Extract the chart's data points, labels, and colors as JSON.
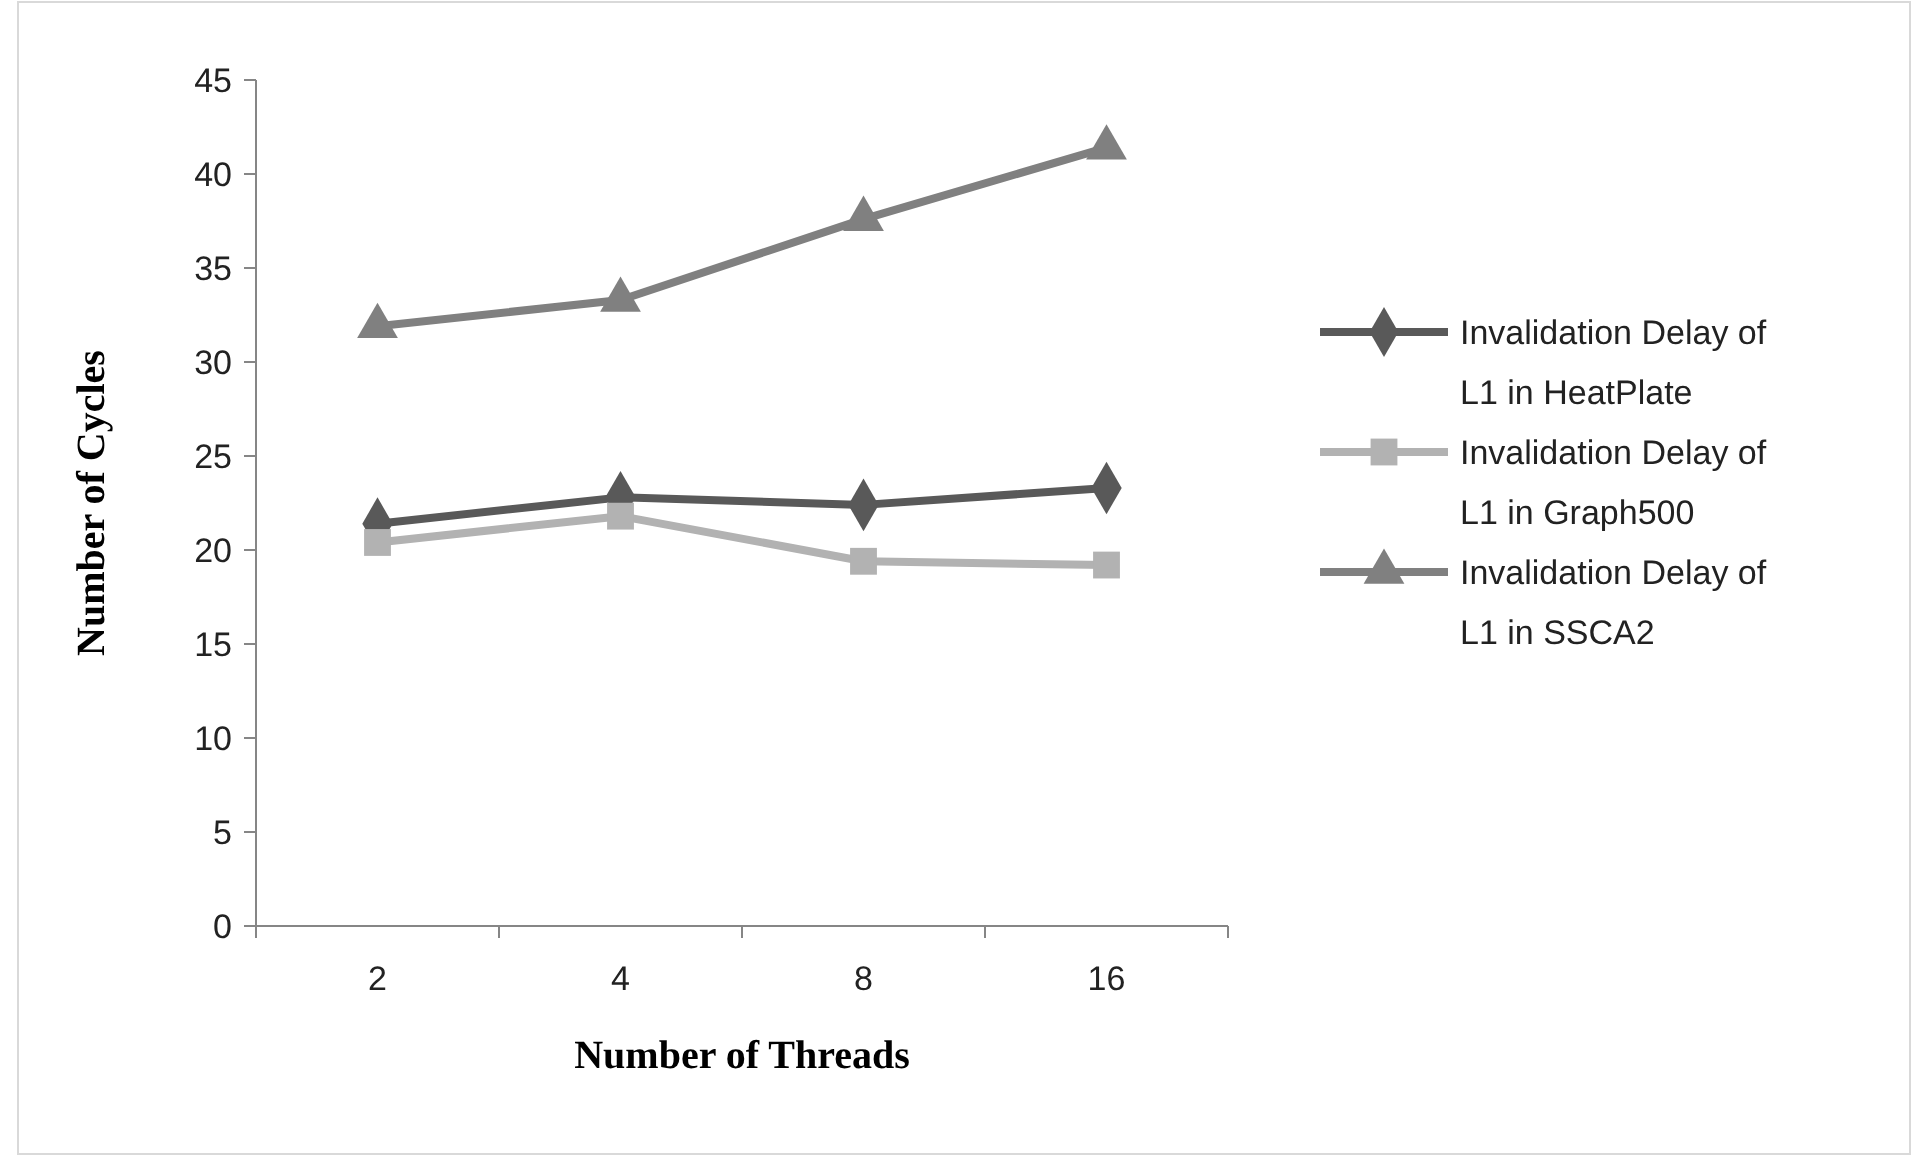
{
  "chart_data": {
    "type": "line",
    "xlabel": "Number of Threads",
    "ylabel": "Number of Cycles",
    "categories": [
      "2",
      "4",
      "8",
      "16"
    ],
    "ylim": [
      0,
      45
    ],
    "yticks": [
      0,
      5,
      10,
      15,
      20,
      25,
      30,
      35,
      40,
      45
    ],
    "grid": false,
    "legend": "right",
    "series": [
      {
        "name": "Invalidation Delay of L1 in HeatPlate",
        "color": "#595959",
        "marker": "diamond",
        "values": [
          21.4,
          22.8,
          22.4,
          23.3
        ]
      },
      {
        "name": "Invalidation Delay of L1 in Graph500",
        "color": "#b2b2b2",
        "marker": "square",
        "values": [
          20.4,
          21.8,
          19.4,
          19.2
        ]
      },
      {
        "name": "Invalidation Delay of L1 in SSCA2",
        "color": "#808080",
        "marker": "triangle",
        "values": [
          31.9,
          33.3,
          37.6,
          41.4
        ]
      }
    ]
  }
}
